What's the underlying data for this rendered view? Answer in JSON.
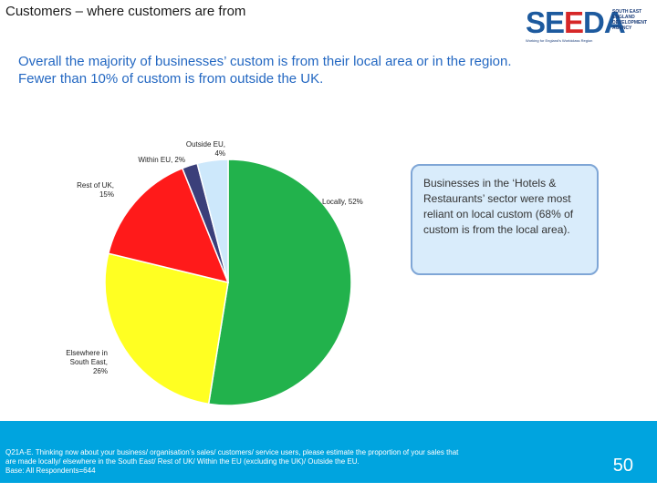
{
  "slide": {
    "title": "Customers – where customers are from",
    "headline_lines": [
      "Overall the majority of businesses’ custom is from their local area or in the region.",
      "Fewer than 10% of custom is from outside the UK."
    ],
    "callout": "Businesses in the ‘Hotels & Restaurants’ sector were most reliant on local custom (68% of custom is from the local area).",
    "footnote_lines": [
      "Q21A-E. Thinking now about your business/ organisation’s sales/ customers/ service users, please estimate the proportion of your sales that",
      "are made locally/ elsewhere in the South East/ Rest of UK/ Within the EU (excluding the UK)/ Outside the EU.",
      "Base: All Respondents=644"
    ],
    "page_number": "50"
  },
  "logo": {
    "word_main": "SEEDA",
    "side_text": "SOUTH EAST ENGLAND DEVELOPMENT AGENCY",
    "tagline": "Working for England's Worldclass Region"
  },
  "chart_data": {
    "type": "pie",
    "title": "",
    "slices": [
      {
        "label_lines": [
          "Locally, 52%"
        ],
        "value": 52,
        "color": "#22b24c"
      },
      {
        "label_lines": [
          "Elsewhere in",
          "South East,",
          "26%"
        ],
        "value": 26,
        "color": "#ffff22"
      },
      {
        "label_lines": [
          "Rest of UK,",
          "15%"
        ],
        "value": 15,
        "color": "#ff1a1a"
      },
      {
        "label_lines": [
          "Within EU, 2%"
        ],
        "value": 2,
        "color": "#3b3f7a"
      },
      {
        "label_lines": [
          "Outside EU,",
          "4%"
        ],
        "value": 4,
        "color": "#cde8fb"
      }
    ],
    "start": "12 o'clock",
    "direction": "clockwise",
    "legend": "none"
  },
  "colors": {
    "headline": "#2468c2",
    "footer_band": "#00a4df",
    "callout_fill": "#d9ecfb",
    "callout_border": "#7fa6d6",
    "logo_blue": "#1d5a9e",
    "logo_red": "#d62728"
  }
}
